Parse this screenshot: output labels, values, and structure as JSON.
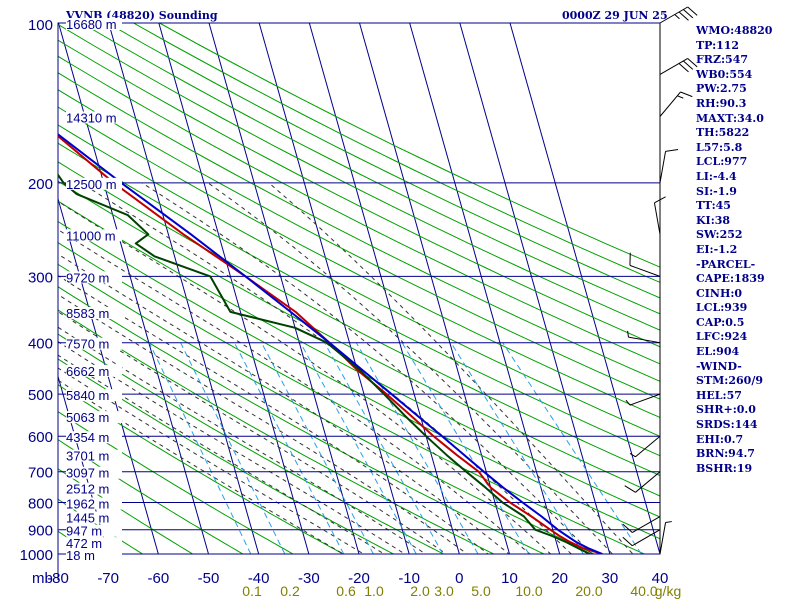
{
  "header": {
    "station": "VVNB (48820) Sounding",
    "time": "0000Z 29 JUN 25"
  },
  "colors": {
    "frame": "#00008b",
    "dry_adiabat": "#00a000",
    "moist_adiabat": "#333333",
    "mixing_ratio": "#2aa0e8",
    "temperature": "#c00000",
    "dewpoint": "#004000",
    "parcel": "#0000cc",
    "wind": "#000000",
    "mixing_label": "#808000"
  },
  "indices": [
    "WMO:48820",
    "TP:112",
    "FRZ:547",
    "WB0:554",
    "PW:2.75",
    "RH:90.3",
    "MAXT:34.0",
    "TH:5822",
    "L57:5.8",
    "LCL:977",
    "LI:-4.4",
    "SI:-1.9",
    "TT:45",
    "KI:38",
    "SW:252",
    "EI:-1.2",
    "-PARCEL-",
    "CAPE:1839",
    "CINH:0",
    "LCL:939",
    "CAP:0.5",
    "LFC:924",
    "EL:904",
    "-WIND-",
    "STM:260/9",
    "HEL:57",
    "SHR+:0.0",
    "SRDS:144",
    "EHI:0.7",
    "BRN:94.7",
    "BSHR:19"
  ],
  "chart_data": {
    "type": "line",
    "subtype": "skew-t log-p",
    "y_scale": "log",
    "ylim": [
      1000,
      100
    ],
    "y_ticks": [
      100,
      200,
      300,
      400,
      500,
      600,
      700,
      800,
      900,
      1000
    ],
    "y_unit_label": "mb",
    "x_ticks": [
      -80,
      -70,
      -60,
      -50,
      -40,
      -30,
      -20,
      -10,
      0,
      10,
      20,
      30,
      40
    ],
    "xlim": [
      -80,
      40
    ],
    "height_labels": [
      {
        "p": 100,
        "label": "16680 m"
      },
      {
        "p": 150,
        "label": "14310 m"
      },
      {
        "p": 200,
        "label": "12500 m"
      },
      {
        "p": 250,
        "label": "11000 m"
      },
      {
        "p": 300,
        "label": "9720 m"
      },
      {
        "p": 350,
        "label": "8583 m"
      },
      {
        "p": 400,
        "label": "7570 m"
      },
      {
        "p": 450,
        "label": "6662 m"
      },
      {
        "p": 500,
        "label": "5840 m"
      },
      {
        "p": 550,
        "label": "5063 m"
      },
      {
        "p": 600,
        "label": "4354 m"
      },
      {
        "p": 650,
        "label": "3701 m"
      },
      {
        "p": 700,
        "label": "3097 m"
      },
      {
        "p": 750,
        "label": "2512 m"
      },
      {
        "p": 800,
        "label": "1962 m"
      },
      {
        "p": 850,
        "label": "1445 m"
      },
      {
        "p": 900,
        "label": "947 m"
      },
      {
        "p": 950,
        "label": "472 m"
      },
      {
        "p": 1000,
        "label": "18 m"
      }
    ],
    "mixing_ratio_labels": [
      "0.1",
      "0.2",
      "0.6",
      "1.0",
      "2.0",
      "3.0",
      "5.0",
      "10.0",
      "20.0",
      "40.0",
      "g/kg"
    ],
    "series": [
      {
        "id": "temperature",
        "points": [
          [
            1000,
            28.5
          ],
          [
            975,
            25
          ],
          [
            950,
            22.8
          ],
          [
            925,
            21
          ],
          [
            900,
            19.5
          ],
          [
            850,
            16.5
          ],
          [
            800,
            13
          ],
          [
            750,
            10
          ],
          [
            700,
            8.5
          ],
          [
            650,
            5
          ],
          [
            600,
            1.5
          ],
          [
            550,
            -1.8
          ],
          [
            500,
            -5.5
          ],
          [
            450,
            -10
          ],
          [
            400,
            -14
          ],
          [
            350,
            -19
          ],
          [
            300,
            -27
          ],
          [
            250,
            -37
          ],
          [
            200,
            -48
          ],
          [
            150,
            -60
          ],
          [
            110,
            -72
          ],
          [
            100,
            -76
          ]
        ]
      },
      {
        "id": "dewpoint",
        "points": [
          [
            1000,
            26
          ],
          [
            975,
            24
          ],
          [
            950,
            22
          ],
          [
            925,
            19.5
          ],
          [
            900,
            16.5
          ],
          [
            850,
            15
          ],
          [
            800,
            11.5
          ],
          [
            750,
            9
          ],
          [
            700,
            6
          ],
          [
            650,
            3
          ],
          [
            600,
            0
          ],
          [
            550,
            -3
          ],
          [
            500,
            -6
          ],
          [
            450,
            -9.5
          ],
          [
            400,
            -14.5
          ],
          [
            375,
            -20
          ],
          [
            350,
            -32
          ],
          [
            300,
            -34
          ],
          [
            275,
            -44
          ],
          [
            260,
            -47
          ],
          [
            250,
            -44
          ],
          [
            230,
            -47
          ],
          [
            210,
            -56
          ],
          [
            200,
            -58
          ],
          [
            180,
            -60
          ],
          [
            150,
            -72
          ],
          [
            120,
            -79
          ],
          [
            110,
            -80
          ]
        ]
      },
      {
        "id": "parcel",
        "points": [
          [
            1000,
            28.5
          ],
          [
            975,
            26
          ],
          [
            950,
            24
          ],
          [
            925,
            22.5
          ],
          [
            900,
            21
          ],
          [
            850,
            18.5
          ],
          [
            800,
            15.5
          ],
          [
            750,
            12.5
          ],
          [
            700,
            9.5
          ],
          [
            650,
            6.5
          ],
          [
            600,
            3.2
          ],
          [
            550,
            -0.5
          ],
          [
            500,
            -4.5
          ],
          [
            450,
            -9
          ],
          [
            400,
            -14
          ],
          [
            350,
            -20
          ],
          [
            300,
            -27
          ],
          [
            250,
            -35.5
          ],
          [
            200,
            -46.5
          ],
          [
            150,
            -60
          ],
          [
            120,
            -71
          ],
          [
            100,
            -80
          ]
        ]
      }
    ],
    "wind_barbs": [
      {
        "p": 1000,
        "dir": 10,
        "kt": 5
      },
      {
        "p": 900,
        "dir": 240,
        "kt": 10
      },
      {
        "p": 850,
        "dir": 240,
        "kt": 10
      },
      {
        "p": 700,
        "dir": 230,
        "kt": 10
      },
      {
        "p": 600,
        "dir": 230,
        "kt": 5
      },
      {
        "p": 500,
        "dir": 250,
        "kt": 5
      },
      {
        "p": 400,
        "dir": 280,
        "kt": 5
      },
      {
        "p": 300,
        "dir": 290,
        "kt": 10
      },
      {
        "p": 250,
        "dir": 350,
        "kt": 10
      },
      {
        "p": 200,
        "dir": 10,
        "kt": 10
      },
      {
        "p": 150,
        "dir": 40,
        "kt": 15
      },
      {
        "p": 125,
        "dir": 60,
        "kt": 30
      },
      {
        "p": 100,
        "dir": 60,
        "kt": 35
      }
    ]
  }
}
